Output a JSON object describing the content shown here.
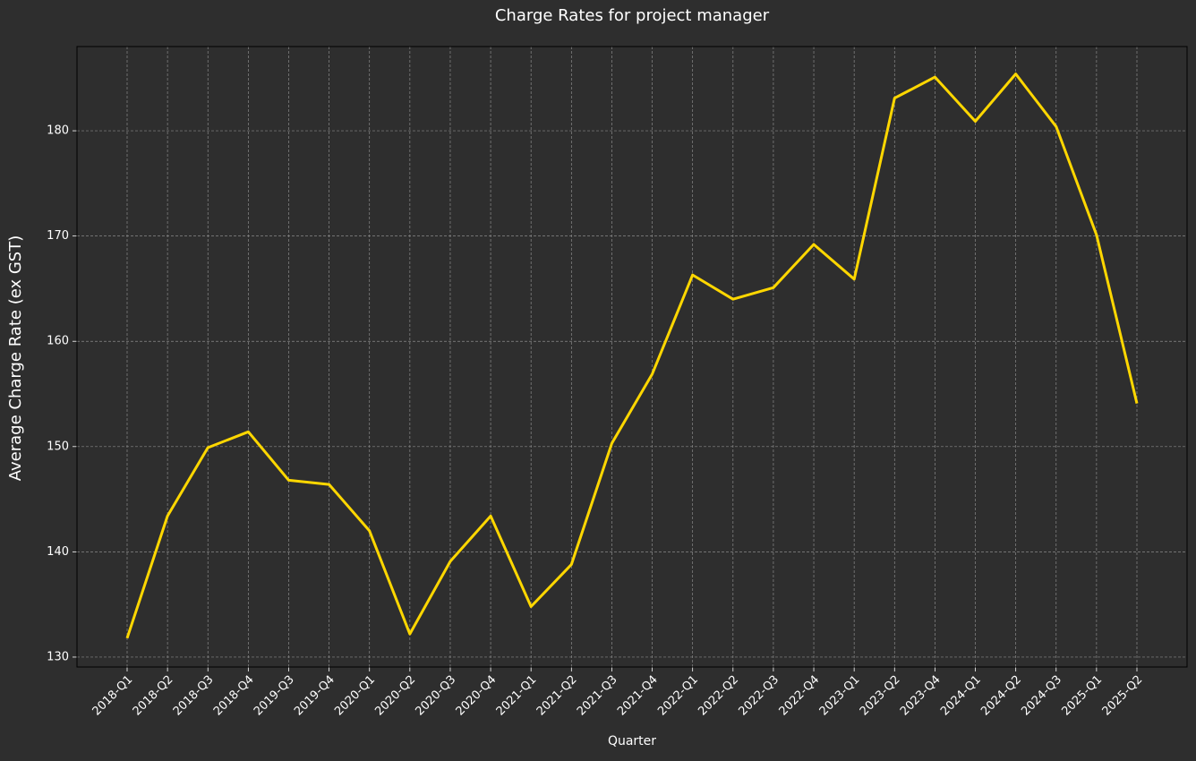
{
  "chart_data": {
    "type": "line",
    "title": "Charge Rates for project manager",
    "x_label": "Quarter",
    "y_label": "Average Charge Rate (ex GST)",
    "categories": [
      "2018-Q1",
      "2018-Q2",
      "2018-Q3",
      "2018-Q4",
      "2019-Q3",
      "2019-Q4",
      "2020-Q1",
      "2020-Q2",
      "2020-Q3",
      "2020-Q4",
      "2021-Q1",
      "2021-Q2",
      "2021-Q3",
      "2021-Q4",
      "2022-Q1",
      "2022-Q2",
      "2022-Q3",
      "2022-Q4",
      "2023-Q1",
      "2023-Q2",
      "2023-Q4",
      "2024-Q1",
      "2024-Q2",
      "2024-Q3",
      "2025-Q1",
      "2025-Q2"
    ],
    "values": [
      131.8,
      143.4,
      149.9,
      151.4,
      146.8,
      146.4,
      142.0,
      132.2,
      139.1,
      143.4,
      134.8,
      138.8,
      150.3,
      156.9,
      166.3,
      164.0,
      165.1,
      169.2,
      165.9,
      183.1,
      185.1,
      180.9,
      185.4,
      180.4,
      170.1,
      154.1
    ],
    "color": "#ffd700",
    "ylim": [
      129.06,
      188.0
    ],
    "yticks": [
      130,
      140,
      150,
      160,
      170,
      180
    ],
    "grid": true
  }
}
